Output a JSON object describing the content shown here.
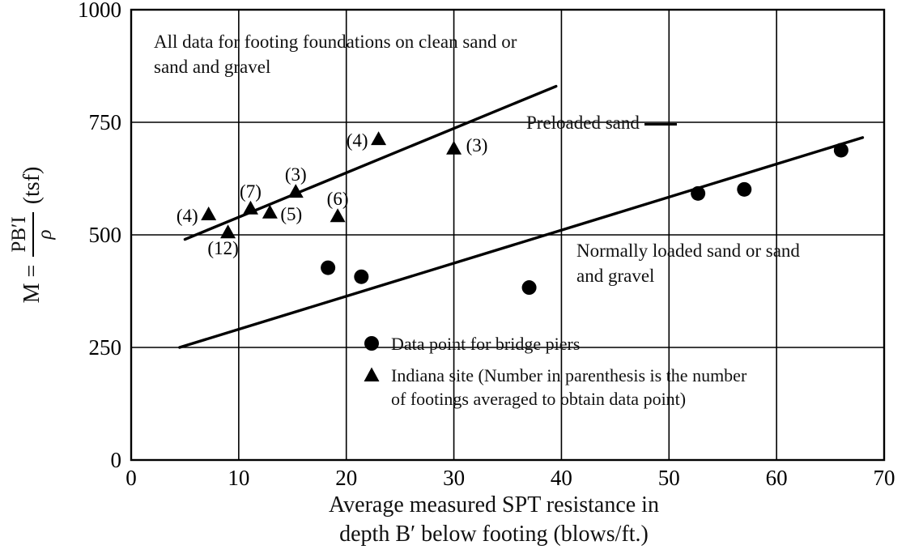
{
  "labels": {
    "top_note_line1": "All data for footing foundations on clean sand or",
    "top_note_line2": "sand and gravel",
    "preloaded": "Preloaded sand",
    "normal_line1": "Normally loaded sand or sand",
    "normal_line2": "and gravel",
    "x_title_line1": "Average measured SPT resistance in",
    "x_title_line2": "depth B′ below footing (blows/ft.)",
    "y_label_prefix": "M =",
    "y_label_numerator": "PB′I",
    "y_label_denominator": "ρ",
    "y_label_suffix": "(tsf)"
  },
  "legend": {
    "circle_label": "Data point for bridge piers",
    "triangle_label_line1": "Indiana site (Number in parenthesis is the number",
    "triangle_label_line2": "of footings averaged to obtain data point)"
  },
  "chart_data": {
    "type": "scatter",
    "title": "",
    "xlabel": "Average measured SPT resistance in depth B′ below footing (blows/ft.)",
    "ylabel": "M = PB′I/ρ (tsf)",
    "xlim": [
      0,
      70
    ],
    "ylim": [
      0,
      1000
    ],
    "x_ticks": [
      0,
      10,
      20,
      30,
      40,
      50,
      60,
      70
    ],
    "y_ticks": [
      0,
      250,
      500,
      750,
      1000
    ],
    "grid": true,
    "ink_color": "#000000",
    "series": [
      {
        "name": "Data point for bridge piers",
        "marker": "circle",
        "points": [
          {
            "x": 18.3,
            "y": 427
          },
          {
            "x": 21.4,
            "y": 407
          },
          {
            "x": 37.0,
            "y": 383
          },
          {
            "x": 52.7,
            "y": 592
          },
          {
            "x": 57.0,
            "y": 601
          },
          {
            "x": 66.0,
            "y": 688
          }
        ]
      },
      {
        "name": "Indiana site",
        "marker": "triangle",
        "points": [
          {
            "x": 7.2,
            "y": 545,
            "label": "(4)",
            "label_pos": "left"
          },
          {
            "x": 9.0,
            "y": 505,
            "label": "(12)",
            "label_pos": "below-left"
          },
          {
            "x": 11.1,
            "y": 558,
            "label": "(7)",
            "label_pos": "above"
          },
          {
            "x": 12.9,
            "y": 549,
            "label": "(5)",
            "label_pos": "right"
          },
          {
            "x": 15.3,
            "y": 595,
            "label": "(3)",
            "label_pos": "above"
          },
          {
            "x": 19.2,
            "y": 541,
            "label": "(6)",
            "label_pos": "above"
          },
          {
            "x": 23.0,
            "y": 712,
            "label": "(4)",
            "label_pos": "left"
          },
          {
            "x": 30.0,
            "y": 691,
            "label": "(3)",
            "label_pos": "right-up"
          }
        ]
      }
    ],
    "trend_lines": [
      {
        "name": "Preloaded sand",
        "x1": 5.0,
        "y1": 490,
        "x2": 39.5,
        "y2": 830
      },
      {
        "name": "Normally loaded sand or sand and gravel",
        "x1": 4.5,
        "y1": 250,
        "x2": 68.0,
        "y2": 716
      }
    ]
  }
}
